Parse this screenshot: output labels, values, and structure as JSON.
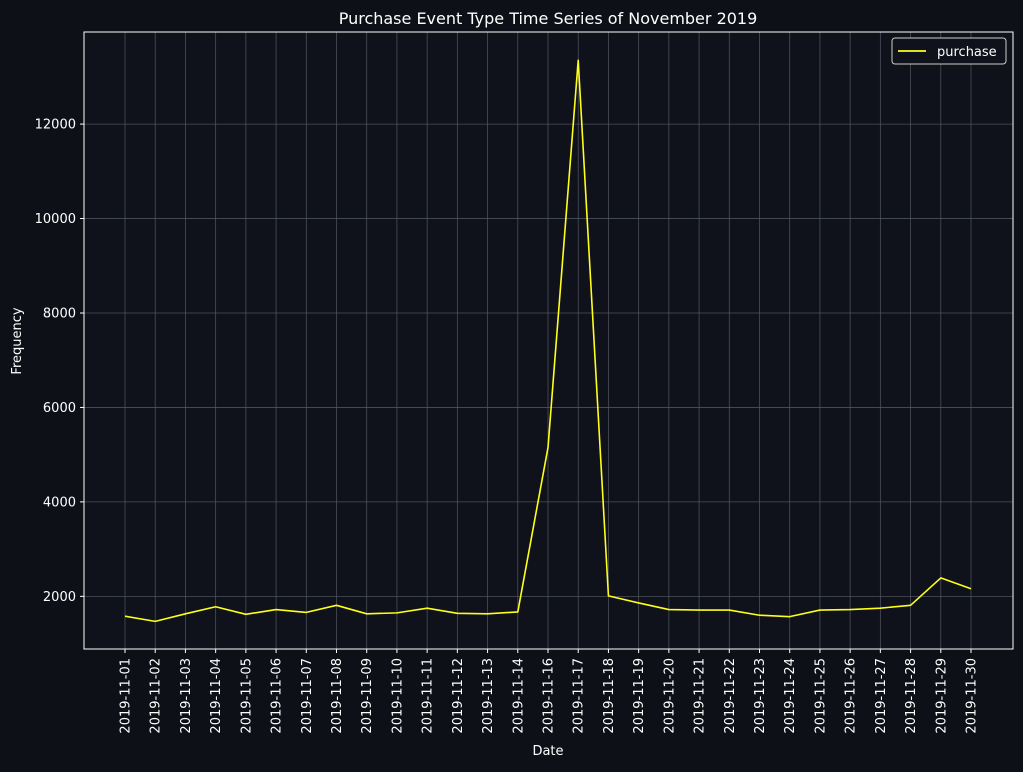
{
  "colors": {
    "figure_background": "#0d1017",
    "plot_background": "#0f121a",
    "series_line": "#ffff1a",
    "grid": "#5a5f6a",
    "text": "#ffffff",
    "axis_spine": "#ffffff"
  },
  "chart_data": {
    "type": "line",
    "title": "Purchase Event Type Time Series of November 2019",
    "xlabel": "Date",
    "ylabel": "Frequency",
    "x": [
      "2019-11-01",
      "2019-11-02",
      "2019-11-03",
      "2019-11-04",
      "2019-11-05",
      "2019-11-06",
      "2019-11-07",
      "2019-11-08",
      "2019-11-09",
      "2019-11-10",
      "2019-11-11",
      "2019-11-12",
      "2019-11-13",
      "2019-11-14",
      "2019-11-16",
      "2019-11-17",
      "2019-11-18",
      "2019-11-19",
      "2019-11-20",
      "2019-11-21",
      "2019-11-22",
      "2019-11-23",
      "2019-11-24",
      "2019-11-25",
      "2019-11-26",
      "2019-11-27",
      "2019-11-28",
      "2019-11-29",
      "2019-11-30"
    ],
    "series": [
      {
        "name": "purchase",
        "values": [
          1580,
          1470,
          1630,
          1780,
          1620,
          1720,
          1660,
          1810,
          1630,
          1650,
          1750,
          1640,
          1630,
          1670,
          5150,
          13350,
          2010,
          1860,
          1720,
          1710,
          1710,
          1600,
          1570,
          1710,
          1720,
          1750,
          1810,
          2390,
          2160
        ]
      }
    ],
    "yticks": [
      2000,
      4000,
      6000,
      8000,
      10000,
      12000
    ],
    "ylim": [
      885,
      13950
    ],
    "grid": true,
    "legend_position": "upper right"
  }
}
